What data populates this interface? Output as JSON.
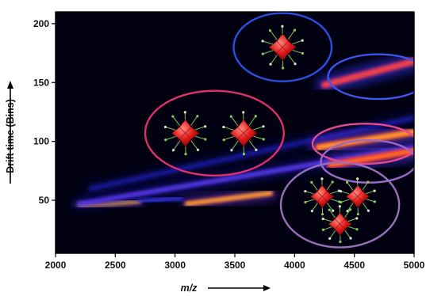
{
  "chart_data": {
    "type": "heatmap",
    "title": "",
    "xlabel": "m/z",
    "ylabel": "Drift time (Bins)",
    "xlim": [
      2000,
      5000
    ],
    "ylim": [
      5,
      210
    ],
    "x_ticks": [
      "2000",
      "2500",
      "3000",
      "3500",
      "4000",
      "4500",
      "5000"
    ],
    "y_ticks": [
      "50",
      "100",
      "150",
      "200"
    ],
    "grid": false,
    "colormap": [
      "#00001a",
      "#0a0a7a",
      "#3a3cff",
      "#b030c0",
      "#ff2a1a",
      "#ffd040"
    ],
    "background_color": "#000010",
    "bands": [
      {
        "x": [
          2150,
          5000
        ],
        "y": [
          48,
          48
        ],
        "width": 3,
        "intensity": 0.25
      },
      {
        "x": [
          2000,
          5000
        ],
        "y": [
          162,
          162
        ],
        "width": 4,
        "intensity": 0.3
      },
      {
        "x": [
          2200,
          2700
        ],
        "y": [
          45,
          49
        ],
        "width": 3,
        "intensity": 0.95
      },
      {
        "x": [
          2700,
          3050
        ],
        "y": [
          49,
          52
        ],
        "width": 3,
        "intensity": 0.4
      },
      {
        "x": [
          3100,
          3800
        ],
        "y": [
          47,
          56
        ],
        "width": 4,
        "intensity": 0.9
      },
      {
        "x": [
          2200,
          5000
        ],
        "y": [
          47,
          95
        ],
        "width": 4,
        "intensity": 0.45
      },
      {
        "x": [
          2300,
          5000
        ],
        "y": [
          60,
          120
        ],
        "width": 4,
        "intensity": 0.25
      },
      {
        "x": [
          4250,
          5000
        ],
        "y": [
          148,
          168
        ],
        "width": 6,
        "intensity": 0.7
      },
      {
        "x": [
          4200,
          5000
        ],
        "y": [
          95,
          108
        ],
        "width": 6,
        "intensity": 0.85
      },
      {
        "x": [
          4300,
          5000
        ],
        "y": [
          80,
          92
        ],
        "width": 6,
        "intensity": 0.8
      }
    ],
    "annotations": [
      {
        "shape": "ellipse",
        "cx": 3900,
        "cy": 180,
        "rx": 410,
        "ry": 29,
        "color": "#2a4ee0",
        "molecules": 1
      },
      {
        "shape": "ellipse",
        "cx": 4700,
        "cy": 155,
        "rx": 420,
        "ry": 19,
        "color": "#3d55ee",
        "molecules": 0
      },
      {
        "shape": "ellipse",
        "cx": 3330,
        "cy": 107,
        "rx": 580,
        "ry": 36,
        "color": "#e0306a",
        "molecules": 2
      },
      {
        "shape": "ellipse",
        "cx": 4590,
        "cy": 98,
        "rx": 440,
        "ry": 17,
        "color": "#e84a8c",
        "molecules": 0
      },
      {
        "shape": "ellipse",
        "cx": 4620,
        "cy": 83,
        "rx": 400,
        "ry": 18,
        "color": "#9a68c8",
        "molecules": 0
      },
      {
        "shape": "ellipse",
        "cx": 4380,
        "cy": 46,
        "rx": 495,
        "ry": 36,
        "color": "#9870b8",
        "molecules": 3
      }
    ]
  }
}
